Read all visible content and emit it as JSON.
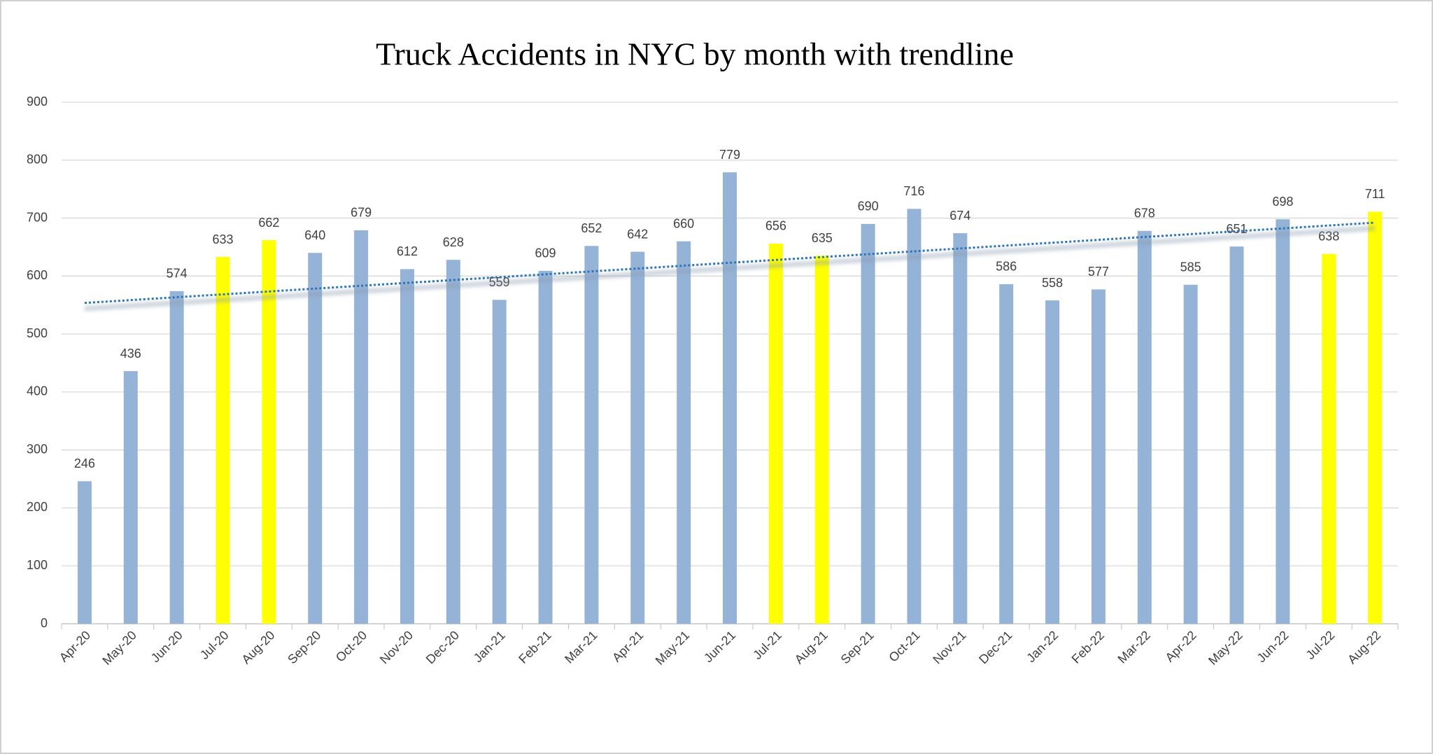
{
  "chart_data": {
    "type": "bar",
    "title": "Truck Accidents in NYC by month with trendline",
    "categories": [
      "Apr-20",
      "May-20",
      "Jun-20",
      "Jul-20",
      "Aug-20",
      "Sep-20",
      "Oct-20",
      "Nov-20",
      "Dec-20",
      "Jan-21",
      "Feb-21",
      "Mar-21",
      "Apr-21",
      "May-21",
      "Jun-21",
      "Jul-21",
      "Aug-21",
      "Sep-21",
      "Oct-21",
      "Nov-21",
      "Dec-21",
      "Jan-22",
      "Feb-22",
      "Mar-22",
      "Apr-22",
      "May-22",
      "Jun-22",
      "Jul-22",
      "Aug-22"
    ],
    "values": [
      246,
      436,
      574,
      633,
      662,
      640,
      679,
      612,
      628,
      559,
      609,
      652,
      642,
      660,
      779,
      656,
      635,
      690,
      716,
      674,
      586,
      558,
      577,
      678,
      585,
      651,
      698,
      638,
      711
    ],
    "colors": [
      "#95b3d7",
      "#95b3d7",
      "#95b3d7",
      "#ffff00",
      "#ffff00",
      "#95b3d7",
      "#95b3d7",
      "#95b3d7",
      "#95b3d7",
      "#95b3d7",
      "#95b3d7",
      "#95b3d7",
      "#95b3d7",
      "#95b3d7",
      "#95b3d7",
      "#ffff00",
      "#ffff00",
      "#95b3d7",
      "#95b3d7",
      "#95b3d7",
      "#95b3d7",
      "#95b3d7",
      "#95b3d7",
      "#95b3d7",
      "#95b3d7",
      "#95b3d7",
      "#95b3d7",
      "#ffff00",
      "#ffff00"
    ],
    "ylim": [
      0,
      900
    ],
    "yticks": [
      0,
      100,
      200,
      300,
      400,
      500,
      600,
      700,
      800,
      900
    ],
    "grid": true,
    "trendline": "linear",
    "trendline_color": "#2e75b6"
  }
}
